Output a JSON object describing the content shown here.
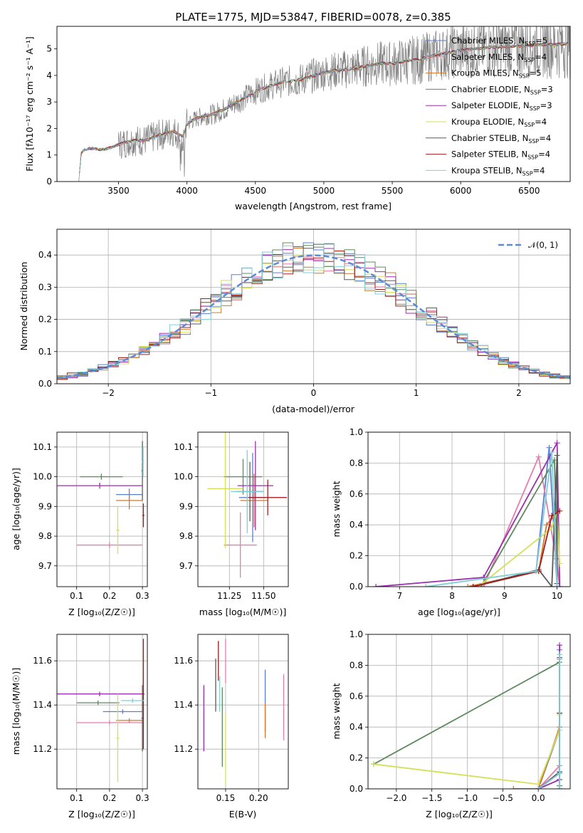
{
  "colors": {
    "s0": "#5b7fd0",
    "s1": "#e47cae",
    "s2": "#d2772c",
    "s3": "#5c8a5c",
    "s4": "#9b2fae",
    "s5": "#d4e157",
    "s6": "#5a5a5a",
    "s7": "#a51c1c",
    "s8": "#80cfd8",
    "obs": "#808080",
    "gauss": "#5b8ad6",
    "grid": "#b0b0b0"
  },
  "chart_data": [
    {
      "type": "line",
      "title": "PLATE=1775, MJD=53847, FIBERID=0078, z=0.385",
      "xlabel": "wavelength [Angstrom, rest frame]",
      "ylabel": "Flux [fλ10⁻¹⁷ erg cm⁻² s⁻¹ A⁻¹]",
      "xlim": [
        3050,
        6800
      ],
      "ylim": [
        0,
        5.85
      ],
      "xticks": [
        "3500",
        "4000",
        "4500",
        "5000",
        "5500",
        "6000",
        "6500"
      ],
      "yticks": [
        "0",
        "1",
        "2",
        "3",
        "4",
        "5"
      ],
      "grid": false,
      "legend_position": "top-right",
      "spectrum_anchors": [
        [
          3210,
          0
        ],
        [
          3225,
          1.05
        ],
        [
          3250,
          1.2
        ],
        [
          3300,
          1.25
        ],
        [
          3400,
          1.2
        ],
        [
          3500,
          1.4
        ],
        [
          3600,
          1.55
        ],
        [
          3700,
          1.55
        ],
        [
          3800,
          1.75
        ],
        [
          3900,
          1.9
        ],
        [
          3970,
          1.7
        ],
        [
          4000,
          2.2
        ],
        [
          4100,
          2.45
        ],
        [
          4200,
          2.55
        ],
        [
          4300,
          2.8
        ],
        [
          4400,
          3.1
        ],
        [
          4500,
          3.4
        ],
        [
          4600,
          3.6
        ],
        [
          4700,
          3.75
        ],
        [
          4800,
          3.8
        ],
        [
          4900,
          3.95
        ],
        [
          5000,
          4.1
        ],
        [
          5100,
          4.2
        ],
        [
          5200,
          4.25
        ],
        [
          5300,
          4.35
        ],
        [
          5400,
          4.45
        ],
        [
          5500,
          4.45
        ],
        [
          5600,
          4.55
        ],
        [
          5700,
          4.6
        ],
        [
          5800,
          4.75
        ],
        [
          5900,
          4.85
        ],
        [
          6000,
          4.95
        ],
        [
          6200,
          5.05
        ],
        [
          6400,
          5.1
        ],
        [
          6600,
          5.15
        ],
        [
          6800,
          5.2
        ]
      ],
      "series": [
        {
          "name": "Chabrier MILES, N",
          "sub": "SSP",
          "suffix": "=5",
          "color_key": "s0"
        },
        {
          "name": "Salpeter MILES, N",
          "sub": "SSP",
          "suffix": "=4",
          "color_key": "s1"
        },
        {
          "name": "Kroupa MILES, N",
          "sub": "SSP",
          "suffix": "=5",
          "color_key": "s2"
        },
        {
          "name": "Chabrier ELODIE, N",
          "sub": "SSP",
          "suffix": "=3",
          "color_key": "s3"
        },
        {
          "name": "Salpeter ELODIE, N",
          "sub": "SSP",
          "suffix": "=3",
          "color_key": "s4"
        },
        {
          "name": "Kroupa ELODIE, N",
          "sub": "SSP",
          "suffix": "=4",
          "color_key": "s5"
        },
        {
          "name": "Chabrier STELIB, N",
          "sub": "SSP",
          "suffix": "=4",
          "color_key": "s6"
        },
        {
          "name": "Salpeter STELIB, N",
          "sub": "SSP",
          "suffix": "=4",
          "color_key": "s7"
        },
        {
          "name": "Kroupa STELIB, N",
          "sub": "SSP",
          "suffix": "=4",
          "color_key": "s8"
        }
      ]
    },
    {
      "type": "line",
      "xlabel": "(data-model)/error",
      "ylabel": "Normed distribution",
      "xlim": [
        -2.5,
        2.5
      ],
      "ylim": [
        0,
        0.48
      ],
      "xticks": [
        -2,
        -1,
        0,
        1,
        2
      ],
      "yticks": [
        0,
        0.1,
        0.2,
        0.3,
        0.4
      ],
      "tick_labels_x": [
        "−2",
        "−1",
        "0",
        "1",
        "2"
      ],
      "tick_labels_y": [
        "0.0",
        "0.1",
        "0.2",
        "0.3",
        "0.4"
      ],
      "grid": true,
      "legend_position": "top-right",
      "gaussian_label": "𝒩(0, 1)",
      "bin_width": 0.1,
      "x_start": -2.5
    },
    {
      "type": "scatter",
      "xlabel": "Z [log₁₀(Z/Z☉)]",
      "ylabel": "age  [log₁₀(age/yr)]",
      "xlim": [
        0.04,
        0.315
      ],
      "ylim": [
        9.63,
        10.15
      ],
      "xticks": [
        0.1,
        0.2,
        0.3
      ],
      "xtick_labels": [
        "0.1",
        "0.2",
        "0.3"
      ],
      "yticks": [
        9.7,
        9.8,
        9.9,
        10.0,
        10.1
      ],
      "ytick_labels": [
        "9.7",
        "9.8",
        "9.9",
        "10.0",
        "10.1"
      ],
      "grid": true,
      "points": [
        {
          "c": "s0",
          "x": 0.26,
          "xe": 0.04,
          "y": 9.94,
          "ye": 0.02
        },
        {
          "c": "s1",
          "x": 0.2,
          "xe": 0.1,
          "y": 9.77,
          "ye": 0.01
        },
        {
          "c": "s2",
          "x": 0.26,
          "xe": 0.04,
          "y": 9.92,
          "ye": 0.03
        },
        {
          "c": "s3",
          "x": 0.175,
          "xe": 0.065,
          "y": 10.0,
          "ye": 0.01
        },
        {
          "c": "s4",
          "x": 0.17,
          "xe": 0.13,
          "y": 9.97,
          "ye": 0.01
        },
        {
          "c": "s5",
          "x": 0.225,
          "xe": 0.005,
          "y": 9.82,
          "ye": 0.08
        },
        {
          "c": "s6",
          "x": 0.3,
          "xe": 0.003,
          "y": 10.02,
          "ye": 0.1
        },
        {
          "c": "s7",
          "x": 0.303,
          "xe": 0.003,
          "y": 9.87,
          "ye": 0.04
        },
        {
          "c": "s8",
          "x": 0.302,
          "xe": 0.003,
          "y": 10.05,
          "ye": 0.05
        }
      ]
    },
    {
      "type": "scatter",
      "xlabel": "mass [log₁₀(M/M☉)]",
      "xlim": [
        11.02,
        11.68
      ],
      "ylim": [
        9.63,
        10.15
      ],
      "xticks": [
        11.25,
        11.5
      ],
      "xtick_labels": [
        "11.25",
        "11.50"
      ],
      "yticks": [
        9.7,
        9.8,
        9.9,
        10.0,
        10.1
      ],
      "ytick_labels": [
        "9.7",
        "9.8",
        "9.9",
        "10.0",
        "10.1"
      ],
      "grid": true,
      "points": [
        {
          "c": "s0",
          "x": 11.42,
          "xe": 0.1,
          "y": 9.93,
          "ye": 0.15
        },
        {
          "c": "s1",
          "x": 11.33,
          "xe": 0.12,
          "y": 9.77,
          "ye": 0.11
        },
        {
          "c": "s2",
          "x": 11.43,
          "xe": 0.1,
          "y": 9.92,
          "ye": 0.09
        },
        {
          "c": "s3",
          "x": 11.35,
          "xe": 0.14,
          "y": 10.0,
          "ye": 0.06
        },
        {
          "c": "s4",
          "x": 11.44,
          "xe": 0.13,
          "y": 9.97,
          "ye": 0.15
        },
        {
          "c": "s5",
          "x": 11.22,
          "xe": 0.13,
          "y": 9.96,
          "ye": 0.2
        },
        {
          "c": "s6",
          "x": 11.4,
          "xe": 0.1,
          "y": 9.95,
          "ye": 0.1
        },
        {
          "c": "s7",
          "x": 11.53,
          "xe": 0.14,
          "y": 9.93,
          "ye": 0.06
        },
        {
          "c": "s8",
          "x": 11.38,
          "xe": 0.12,
          "y": 9.95,
          "ye": 0.14
        }
      ]
    },
    {
      "type": "line",
      "xlabel": "age  [log₁₀(age/yr)]",
      "ylabel": "mass weight",
      "xlim": [
        6.4,
        10.25
      ],
      "ylim": [
        0,
        1.0
      ],
      "xticks": [
        7,
        8,
        9,
        10
      ],
      "xtick_labels": [
        "7",
        "8",
        "9",
        "10"
      ],
      "yticks": [
        0,
        0.2,
        0.4,
        0.6,
        0.8,
        1.0
      ],
      "ytick_labels": [
        "0.0",
        "0.2",
        "0.4",
        "0.6",
        "0.8",
        "1.0"
      ],
      "grid": true,
      "series": [
        {
          "c": "s0",
          "pts": [
            [
              8.4,
              0.0
            ],
            [
              9.6,
              0.1
            ],
            [
              9.85,
              0.9
            ],
            [
              10.0,
              0.0
            ]
          ]
        },
        {
          "c": "s1",
          "pts": [
            [
              8.6,
              0.0
            ],
            [
              9.65,
              0.84
            ],
            [
              10.0,
              0.15
            ],
            [
              10.05,
              0.0
            ]
          ]
        },
        {
          "c": "s2",
          "pts": [
            [
              8.3,
              0.0
            ],
            [
              9.65,
              0.1
            ],
            [
              9.8,
              0.4
            ],
            [
              10.0,
              0.48
            ]
          ]
        },
        {
          "c": "s3",
          "pts": [
            [
              8.55,
              0.0
            ],
            [
              9.95,
              0.82
            ],
            [
              10.0,
              0.18
            ]
          ]
        },
        {
          "c": "s4",
          "pts": [
            [
              6.55,
              0.0
            ],
            [
              8.6,
              0.06
            ],
            [
              10.0,
              0.93
            ],
            [
              10.05,
              0.0
            ]
          ]
        },
        {
          "c": "s5",
          "pts": [
            [
              8.5,
              0.0
            ],
            [
              9.9,
              0.38
            ],
            [
              10.0,
              0.48
            ],
            [
              10.05,
              0.15
            ]
          ]
        },
        {
          "c": "s6",
          "pts": [
            [
              8.4,
              0.0
            ],
            [
              9.65,
              0.11
            ],
            [
              9.9,
              0.0
            ],
            [
              10.0,
              0.85
            ],
            [
              10.0,
              0.02
            ]
          ]
        },
        {
          "c": "s7",
          "pts": [
            [
              8.4,
              0.0
            ],
            [
              9.65,
              0.1
            ],
            [
              9.9,
              0.46
            ],
            [
              10.05,
              0.49
            ]
          ]
        },
        {
          "c": "s8",
          "pts": [
            [
              7.5,
              0.0
            ],
            [
              9.6,
              0.1
            ],
            [
              9.9,
              0.87
            ],
            [
              10.0,
              0.0
            ]
          ]
        }
      ]
    },
    {
      "type": "scatter",
      "xlabel": "Z [log₁₀(Z/Z☉)]",
      "ylabel": "mass [log₁₀(M/M☉)]",
      "xlim": [
        0.04,
        0.315
      ],
      "ylim": [
        11.02,
        11.72
      ],
      "xticks": [
        0.1,
        0.2,
        0.3
      ],
      "xtick_labels": [
        "0.1",
        "0.2",
        "0.3"
      ],
      "yticks": [
        11.2,
        11.4,
        11.6
      ],
      "ytick_labels": [
        "11.2",
        "11.4",
        "11.6"
      ],
      "grid": true,
      "points": [
        {
          "c": "s0",
          "x": 0.24,
          "xe": 0.06,
          "y": 11.37,
          "ye": 0.01
        },
        {
          "c": "s1",
          "x": 0.2,
          "xe": 0.1,
          "y": 11.32,
          "ye": 0.01
        },
        {
          "c": "s2",
          "x": 0.26,
          "xe": 0.04,
          "y": 11.33,
          "ye": 0.01
        },
        {
          "c": "s3",
          "x": 0.165,
          "xe": 0.065,
          "y": 11.41,
          "ye": 0.01
        },
        {
          "c": "s4",
          "x": 0.17,
          "xe": 0.13,
          "y": 11.45,
          "ye": 0.01
        },
        {
          "c": "s5",
          "x": 0.225,
          "xe": 0.004,
          "y": 11.25,
          "ye": 0.2
        },
        {
          "c": "s6",
          "x": 0.3,
          "xe": 0.003,
          "y": 11.34,
          "ye": 0.15
        },
        {
          "c": "s7",
          "x": 0.303,
          "xe": 0.003,
          "y": 11.45,
          "ye": 0.25
        },
        {
          "c": "s8",
          "x": 0.27,
          "xe": 0.035,
          "y": 11.42,
          "ye": 0.01
        }
      ]
    },
    {
      "type": "scatter",
      "xlabel": "E(B-V)",
      "xlim": [
        0.108,
        0.245
      ],
      "ylim": [
        11.02,
        11.72
      ],
      "xticks": [
        0.15,
        0.2
      ],
      "xtick_labels": [
        "0.15",
        "0.20"
      ],
      "yticks": [
        11.2,
        11.4,
        11.6
      ],
      "ytick_labels": [
        "11.2",
        "11.4",
        "11.6"
      ],
      "grid": true,
      "points": [
        {
          "c": "s0",
          "x": 0.21,
          "xe": 0,
          "y": 11.42,
          "ye": 0.14
        },
        {
          "c": "s1",
          "x": 0.15,
          "xe": 0,
          "y": 11.6,
          "ye": 0.1
        },
        {
          "c": "s2",
          "x": 0.21,
          "xe": 0,
          "y": 11.33,
          "ye": 0.08
        },
        {
          "c": "s3",
          "x": 0.145,
          "xe": 0,
          "y": 11.3,
          "ye": 0.18
        },
        {
          "c": "s4",
          "x": 0.117,
          "xe": 0,
          "y": 11.34,
          "ye": 0.15
        },
        {
          "c": "s5",
          "x": 0.15,
          "xe": 0,
          "y": 11.2,
          "ye": 0.16
        },
        {
          "c": "s6",
          "x": 0.135,
          "xe": 0,
          "y": 11.49,
          "ye": 0.12
        },
        {
          "c": "s7",
          "x": 0.139,
          "xe": 0,
          "y": 11.6,
          "ye": 0.09
        },
        {
          "c": "s8",
          "x": 0.141,
          "xe": 0,
          "y": 11.45,
          "ye": 0.08
        },
        {
          "c": "s1",
          "x": 0.238,
          "xe": 0,
          "y": 11.39,
          "ye": 0.15
        }
      ]
    },
    {
      "type": "line",
      "xlabel": "Z [log₁₀(Z/Z☉)]",
      "ylabel": "mass weight",
      "xlim": [
        -2.4,
        0.45
      ],
      "ylim": [
        0,
        1.0
      ],
      "xticks": [
        -2.0,
        -1.5,
        -1.0,
        -0.5,
        0.0
      ],
      "xtick_labels": [
        "−2.0",
        "−1.5",
        "−1.0",
        "−0.5",
        "0.0"
      ],
      "yticks": [
        0,
        0.2,
        0.4,
        0.6,
        0.8,
        1.0
      ],
      "ytick_labels": [
        "0.0",
        "0.2",
        "0.4",
        "0.6",
        "0.8",
        "1.0"
      ],
      "grid": true,
      "series": [
        {
          "c": "s0",
          "pts": [
            [
              0.0,
              0.0
            ],
            [
              0.3,
              0.38
            ],
            [
              0.3,
              0.9
            ]
          ]
        },
        {
          "c": "s1",
          "pts": [
            [
              0.0,
              0.0
            ],
            [
              0.3,
              0.15
            ],
            [
              0.3,
              0.84
            ]
          ]
        },
        {
          "c": "s2",
          "pts": [
            [
              -0.35,
              0.0
            ],
            [
              0.0,
              0.0
            ],
            [
              0.3,
              0.4
            ],
            [
              0.3,
              0.49
            ]
          ]
        },
        {
          "c": "s3",
          "pts": [
            [
              -2.32,
              0.16
            ],
            [
              0.3,
              0.82
            ],
            [
              0.3,
              0.02
            ]
          ]
        },
        {
          "c": "s4",
          "pts": [
            [
              0.0,
              0.0
            ],
            [
              0.3,
              0.06
            ],
            [
              0.3,
              0.93
            ]
          ]
        },
        {
          "c": "s5",
          "pts": [
            [
              -2.32,
              0.16
            ],
            [
              0.0,
              0.03
            ],
            [
              0.3,
              0.38
            ],
            [
              0.3,
              0.48
            ]
          ]
        },
        {
          "c": "s6",
          "pts": [
            [
              0.0,
              0.0
            ],
            [
              0.3,
              0.11
            ],
            [
              0.3,
              0.85
            ],
            [
              0.3,
              0.0
            ]
          ]
        },
        {
          "c": "s7",
          "pts": [
            [
              0.0,
              0.0
            ],
            [
              0.3,
              0.1
            ],
            [
              0.3,
              0.49
            ]
          ]
        },
        {
          "c": "s8",
          "pts": [
            [
              0.0,
              0.0
            ],
            [
              0.3,
              0.1
            ],
            [
              0.3,
              0.87
            ],
            [
              0.3,
              0.0
            ]
          ]
        }
      ]
    }
  ]
}
